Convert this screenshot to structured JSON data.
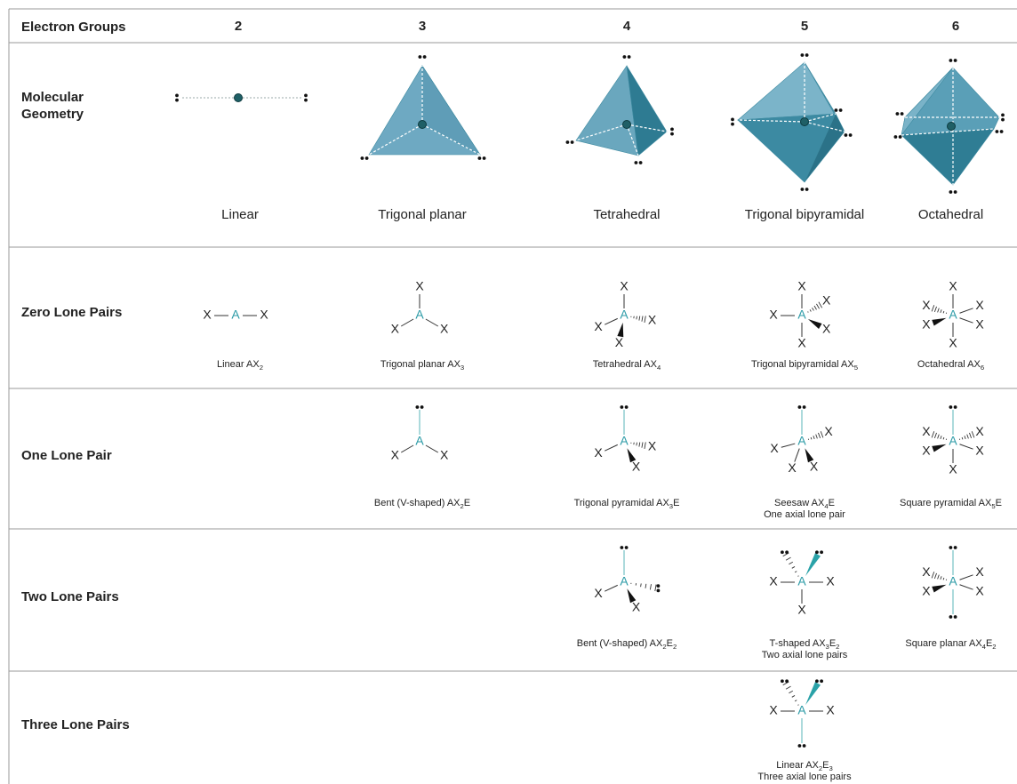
{
  "header": {
    "label": "Electron Groups",
    "groups": [
      "2",
      "3",
      "4",
      "5",
      "6"
    ]
  },
  "atoms": {
    "center": "A",
    "ligand": "X"
  },
  "rows": [
    {
      "label": "Molecular Geometry",
      "cells": [
        {
          "caption": [
            "Linear"
          ]
        },
        {
          "caption": [
            "Trigonal planar"
          ]
        },
        {
          "caption": [
            "Tetrahedral"
          ]
        },
        {
          "caption": [
            "Trigonal bipyramidal"
          ]
        },
        {
          "caption": [
            "Octahedral"
          ]
        }
      ]
    },
    {
      "label": "Zero Lone Pairs",
      "cells": [
        {
          "caption": [
            "Linear AX",
            {
              "sub": "2"
            }
          ]
        },
        {
          "caption": [
            "Trigonal planar AX",
            {
              "sub": "3"
            }
          ]
        },
        {
          "caption": [
            "Tetrahedral AX",
            {
              "sub": "4"
            }
          ]
        },
        {
          "caption": [
            "Trigonal bipyramidal AX",
            {
              "sub": "5"
            }
          ]
        },
        {
          "caption": [
            "Octahedral AX",
            {
              "sub": "6"
            }
          ]
        }
      ]
    },
    {
      "label": "One Lone Pair",
      "cells": [
        null,
        {
          "caption": [
            "Bent (V-shaped) AX",
            {
              "sub": "2"
            },
            "E"
          ]
        },
        {
          "caption": [
            "Trigonal pyramidal AX",
            {
              "sub": "3"
            },
            "E"
          ]
        },
        {
          "caption": [
            "Seesaw AX",
            {
              "sub": "4"
            },
            "E"
          ],
          "note": "One axial lone pair"
        },
        {
          "caption": [
            "Square pyramidal AX",
            {
              "sub": "5"
            },
            "E"
          ]
        }
      ]
    },
    {
      "label": "Two Lone Pairs",
      "cells": [
        null,
        null,
        {
          "caption": [
            "Bent (V-shaped) AX",
            {
              "sub": "2"
            },
            "E",
            {
              "sub": "2"
            }
          ]
        },
        {
          "caption": [
            "T-shaped AX",
            {
              "sub": "3"
            },
            "E",
            {
              "sub": "2"
            }
          ],
          "note": "Two axial lone pairs"
        },
        {
          "caption": [
            "Square planar AX",
            {
              "sub": "4"
            },
            "E",
            {
              "sub": "2"
            }
          ]
        }
      ]
    },
    {
      "label": "Three Lone Pairs",
      "cells": [
        null,
        null,
        null,
        {
          "caption": [
            "Linear AX",
            {
              "sub": "2"
            },
            "E",
            {
              "sub": "3"
            }
          ],
          "note": "Three axial lone pairs"
        },
        null
      ]
    }
  ]
}
